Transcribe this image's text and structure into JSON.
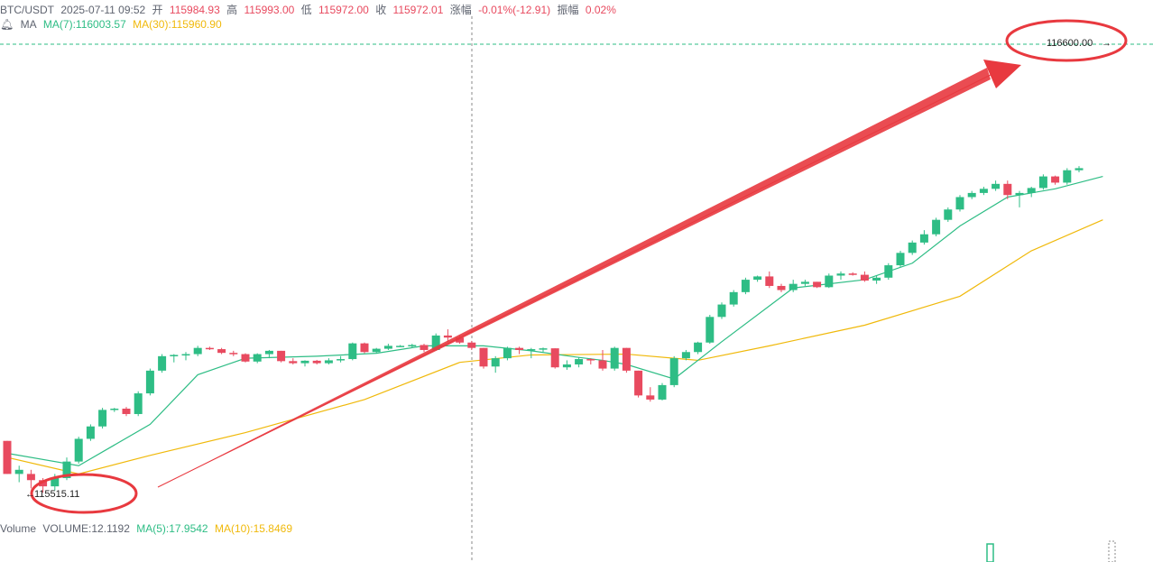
{
  "header": {
    "pair": "BTC/USDT",
    "datetime": "2025-07-11 09:52",
    "open_label": "开",
    "open_value": "115984.93",
    "high_label": "高",
    "high_value": "115993.00",
    "low_label": "低",
    "low_value": "115972.00",
    "close_label": "收",
    "close_value": "115972.01",
    "change_label": "涨幅",
    "change_value": "-0.01%(-12.91)",
    "amp_label": "振幅",
    "amp_value": "0.02%"
  },
  "indicators": {
    "ma_label": "MA",
    "ma7": "MA(7):116003.57",
    "ma30": "MA(30):115960.90"
  },
  "volume": {
    "label": "Volume",
    "value": "VOLUME:12.1192",
    "ma5": "MA(5):17.9542",
    "ma10": "MA(10):15.8469"
  },
  "annotations": {
    "low_price": "115515.11",
    "high_price": "116600.00"
  },
  "colors": {
    "up": "#2ebd85",
    "down": "#e84a5f",
    "ma7": "#2ebd85",
    "ma30": "#f0b90b",
    "arrow": "#e8393f",
    "circle": "#e8393f"
  },
  "chart_data": {
    "type": "candlestick",
    "y_axis": {
      "min": 115500,
      "max": 116600
    },
    "candles": [
      [
        115640,
        115640,
        115560,
        115560
      ],
      [
        115560,
        115580,
        115540,
        115570
      ],
      [
        115560,
        115570,
        115525,
        115545
      ],
      [
        115545,
        115550,
        115515,
        115530
      ],
      [
        115530,
        115560,
        115520,
        115550
      ],
      [
        115550,
        115600,
        115545,
        115590
      ],
      [
        115590,
        115650,
        115585,
        115645
      ],
      [
        115645,
        115680,
        115640,
        115675
      ],
      [
        115675,
        115720,
        115670,
        115715
      ],
      [
        115715,
        115720,
        115710,
        115718
      ],
      [
        115718,
        115722,
        115700,
        115705
      ],
      [
        115705,
        115760,
        115700,
        115755
      ],
      [
        115755,
        115815,
        115750,
        115810
      ],
      [
        115810,
        115850,
        115805,
        115845
      ],
      [
        115845,
        115850,
        115830,
        115848
      ],
      [
        115848,
        115855,
        115835,
        115850
      ],
      [
        115850,
        115870,
        115845,
        115865
      ],
      [
        115865,
        115868,
        115860,
        115862
      ],
      [
        115862,
        115865,
        115850,
        115853
      ],
      [
        115853,
        115858,
        115845,
        115850
      ],
      [
        115850,
        115852,
        115830,
        115832
      ],
      [
        115832,
        115852,
        115828,
        115850
      ],
      [
        115850,
        115860,
        115840,
        115858
      ],
      [
        115858,
        115858,
        115830,
        115833
      ],
      [
        115833,
        115840,
        115825,
        115828
      ],
      [
        115828,
        115835,
        115820,
        115834
      ],
      [
        115834,
        115836,
        115825,
        115828
      ],
      [
        115828,
        115840,
        115825,
        115835
      ],
      [
        115835,
        115845,
        115830,
        115838
      ],
      [
        115838,
        115878,
        115835,
        115876
      ],
      [
        115876,
        115878,
        115852,
        115855
      ],
      [
        115855,
        115865,
        115852,
        115863
      ],
      [
        115863,
        115875,
        115860,
        115870
      ],
      [
        115870,
        115872,
        115868,
        115870
      ],
      [
        115870,
        115875,
        115865,
        115872
      ],
      [
        115872,
        115875,
        115855,
        115860
      ],
      [
        115860,
        115900,
        115858,
        115895
      ],
      [
        115895,
        115910,
        115880,
        115890
      ],
      [
        115890,
        115895,
        115875,
        115878
      ],
      [
        115878,
        115882,
        115860,
        115865
      ],
      [
        115865,
        115865,
        115815,
        115820
      ],
      [
        115820,
        115845,
        115805,
        115840
      ],
      [
        115840,
        115868,
        115835,
        115865
      ],
      [
        115865,
        115868,
        115850,
        115860
      ],
      [
        115860,
        115865,
        115840,
        115862
      ],
      [
        115862,
        115866,
        115855,
        115864
      ],
      [
        115864,
        115864,
        115815,
        115818
      ],
      [
        115818,
        115835,
        115812,
        115825
      ],
      [
        115825,
        115842,
        115818,
        115838
      ],
      [
        115838,
        115840,
        115825,
        115835
      ],
      [
        115835,
        115860,
        115810,
        115815
      ],
      [
        115815,
        115868,
        115810,
        115865
      ],
      [
        115865,
        115865,
        115805,
        115810
      ],
      [
        115810,
        115810,
        115745,
        115750
      ],
      [
        115750,
        115770,
        115735,
        115740
      ],
      [
        115740,
        115780,
        115738,
        115775
      ],
      [
        115775,
        115845,
        115770,
        115840
      ],
      [
        115840,
        115860,
        115835,
        115855
      ],
      [
        115855,
        115880,
        115850,
        115878
      ],
      [
        115878,
        115945,
        115875,
        115940
      ],
      [
        115940,
        115975,
        115935,
        115970
      ],
      [
        115970,
        116005,
        115965,
        116000
      ],
      [
        116000,
        116035,
        115995,
        116030
      ],
      [
        116030,
        116040,
        116025,
        116038
      ],
      [
        116038,
        116050,
        116010,
        116015
      ],
      [
        116015,
        116020,
        116000,
        116005
      ],
      [
        116005,
        116030,
        116000,
        116020
      ],
      [
        116020,
        116030,
        116015,
        116025
      ],
      [
        116025,
        116025,
        116010,
        116012
      ],
      [
        116012,
        116045,
        116010,
        116040
      ],
      [
        116040,
        116050,
        116030,
        116045
      ],
      [
        116045,
        116048,
        116040,
        116042
      ],
      [
        116042,
        116050,
        116025,
        116028
      ],
      [
        116028,
        116040,
        116020,
        116035
      ],
      [
        116035,
        116070,
        116030,
        116065
      ],
      [
        116065,
        116100,
        116060,
        116095
      ],
      [
        116095,
        116125,
        116090,
        116120
      ],
      [
        116120,
        116150,
        116115,
        116140
      ],
      [
        116140,
        116180,
        116135,
        116175
      ],
      [
        116175,
        116205,
        116170,
        116200
      ],
      [
        116200,
        116235,
        116195,
        116230
      ],
      [
        116230,
        116245,
        116225,
        116240
      ],
      [
        116240,
        116255,
        116235,
        116250
      ],
      [
        116250,
        116270,
        116245,
        116262
      ],
      [
        116262,
        116270,
        116225,
        116235
      ],
      [
        116235,
        116245,
        116205,
        116240
      ],
      [
        116240,
        116255,
        116230,
        116252
      ],
      [
        116252,
        116285,
        116248,
        116280
      ],
      [
        116280,
        116282,
        116260,
        116265
      ],
      [
        116265,
        116300,
        116260,
        116295
      ],
      [
        116295,
        116305,
        116290,
        116300
      ]
    ],
    "ma7": [
      [
        0,
        115610
      ],
      [
        6,
        115580
      ],
      [
        12,
        115680
      ],
      [
        16,
        115800
      ],
      [
        20,
        115840
      ],
      [
        26,
        115845
      ],
      [
        31,
        115852
      ],
      [
        35,
        115870
      ],
      [
        40,
        115870
      ],
      [
        44,
        115858
      ],
      [
        48,
        115842
      ],
      [
        50,
        115835
      ],
      [
        52,
        115825
      ],
      [
        56,
        115790
      ],
      [
        60,
        115880
      ],
      [
        66,
        116010
      ],
      [
        72,
        116030
      ],
      [
        76,
        116070
      ],
      [
        80,
        116160
      ],
      [
        84,
        116230
      ],
      [
        88,
        116250
      ],
      [
        92,
        116280
      ]
    ],
    "ma30": [
      [
        0,
        115600
      ],
      [
        6,
        115560
      ],
      [
        12,
        115605
      ],
      [
        20,
        115660
      ],
      [
        30,
        115740
      ],
      [
        38,
        115830
      ],
      [
        44,
        115848
      ],
      [
        52,
        115850
      ],
      [
        58,
        115835
      ],
      [
        64,
        115870
      ],
      [
        72,
        115920
      ],
      [
        80,
        115990
      ],
      [
        86,
        116100
      ],
      [
        92,
        116175
      ]
    ]
  }
}
